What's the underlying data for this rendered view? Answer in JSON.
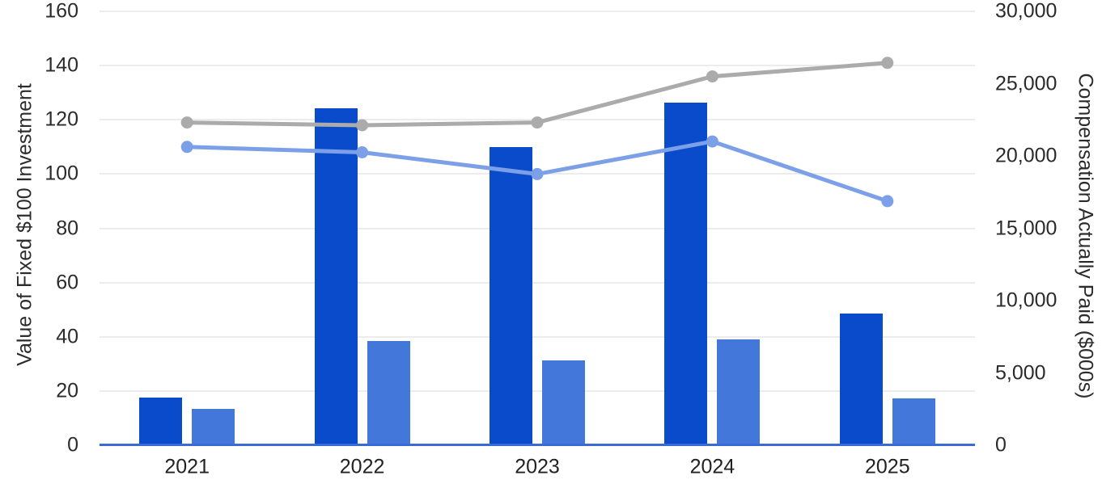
{
  "chart_data": {
    "type": "combo",
    "categories": [
      "2021",
      "2022",
      "2023",
      "2024",
      "2025"
    ],
    "series": [
      {
        "name": "dark_blue_bars",
        "type": "bar",
        "axis": "right",
        "color": "#0A4BCC",
        "values": [
          3300,
          23300,
          20600,
          23700,
          9100
        ]
      },
      {
        "name": "light_blue_bars",
        "type": "bar",
        "axis": "right",
        "color": "#4377D9",
        "values": [
          2500,
          7200,
          5850,
          7300,
          3250
        ]
      },
      {
        "name": "gray_line",
        "type": "line",
        "axis": "left",
        "color": "#ABABAB",
        "values": [
          119,
          118,
          119,
          136,
          141
        ]
      },
      {
        "name": "light_blue_line",
        "type": "line",
        "axis": "left",
        "color": "#7CA0E8",
        "values": [
          110,
          108,
          100,
          112,
          90
        ]
      }
    ],
    "title": "",
    "xlabel": "",
    "ylabel_left": "Value of Fixed $100 Investment",
    "ylabel_right": "Compensation Actually Paid ($000s)",
    "left_axis": {
      "min": 0,
      "max": 160,
      "tick_step": 20,
      "tick_labels": [
        "0",
        "20",
        "40",
        "60",
        "80",
        "100",
        "120",
        "140",
        "160"
      ]
    },
    "right_axis": {
      "min": 0,
      "max": 30000,
      "tick_step": 5000,
      "tick_labels": [
        "0",
        "5,000",
        "10,000",
        "15,000",
        "20,000",
        "25,000",
        "30,000"
      ]
    },
    "grid": "horizontal",
    "legend": "none",
    "colors": {
      "gridline": "#ECECEC",
      "axis_line": "#3A6AD4",
      "text": "#2B2B2B",
      "background": "#FFFFFF"
    }
  }
}
